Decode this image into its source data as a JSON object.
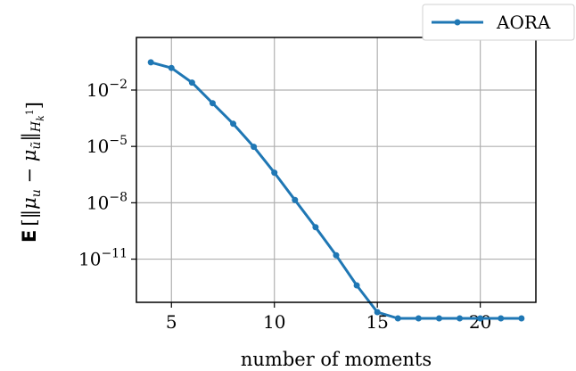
{
  "chart_data": {
    "type": "line",
    "title": "",
    "xlabel": "number of moments",
    "ylabel": "E[‖μ_u − μ_ũ‖_{H_k^1}]",
    "yscale": "log",
    "grid": true,
    "legend_position": "top-right",
    "xlim": [
      3.3,
      22.7
    ],
    "ylim_exponent": [
      -13.3,
      0.8
    ],
    "xticks": [
      5,
      10,
      15,
      20
    ],
    "xtick_labels": [
      "5",
      "10",
      "15",
      "20"
    ],
    "yticks": [
      0.01,
      1e-05,
      1e-08,
      1e-11
    ],
    "ytick_labels": [
      {
        "base": "10",
        "exp": "−2"
      },
      {
        "base": "10",
        "exp": "−5"
      },
      {
        "base": "10",
        "exp": "−8"
      },
      {
        "base": "10",
        "exp": "−11"
      }
    ],
    "series": [
      {
        "name": "AORA",
        "color": "#1f77b4",
        "x": [
          4,
          5,
          6,
          7,
          8,
          9,
          10,
          11,
          12,
          13,
          14,
          15,
          16,
          17,
          18,
          19,
          20,
          21,
          22
        ],
        "y": [
          0.3,
          0.15,
          0.025,
          0.002,
          0.00016,
          9.5e-06,
          4e-07,
          1.4e-08,
          5e-10,
          1.6e-11,
          4e-13,
          1.5e-14,
          7e-15,
          7e-15,
          7e-15,
          7e-15,
          7e-15,
          7e-15,
          7e-15
        ]
      }
    ]
  }
}
